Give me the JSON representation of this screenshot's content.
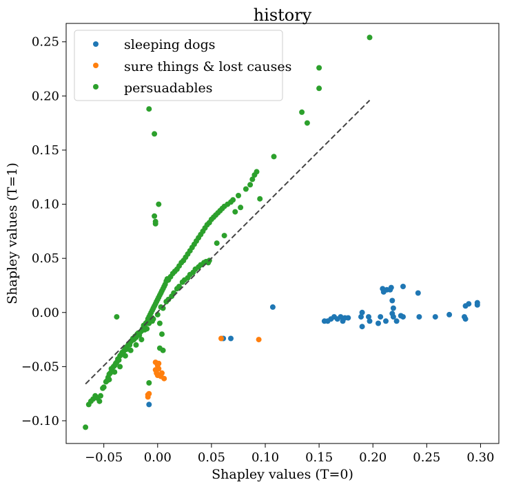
{
  "chart_data": {
    "type": "scatter",
    "title": "history",
    "xlabel": "Shapley values (T=0)",
    "ylabel": "Shapley values (T=1)",
    "xlim": [
      -0.085,
      0.317
    ],
    "ylim": [
      -0.121,
      0.267
    ],
    "xticks": [
      "−0.05",
      "0.00",
      "0.05",
      "0.10",
      "0.15",
      "0.20",
      "0.25",
      "0.30"
    ],
    "xtick_values": [
      -0.05,
      0.0,
      0.05,
      0.1,
      0.15,
      0.2,
      0.25,
      0.3
    ],
    "yticks": [
      "−0.10",
      "−0.05",
      "0.00",
      "0.05",
      "0.10",
      "0.15",
      "0.20",
      "0.25"
    ],
    "ytick_values": [
      -0.1,
      -0.05,
      0.0,
      0.05,
      0.1,
      0.15,
      0.2,
      0.25
    ],
    "grid": false,
    "legend_position": "top-left",
    "reference_line": {
      "style": "dashed",
      "color": "#444444",
      "x": [
        -0.067,
        0.197
      ],
      "y": [
        -0.066,
        0.196
      ]
    },
    "series": [
      {
        "name": "sleeping dogs",
        "color": "#1f77b4",
        "points": [
          [
            -0.008,
            -0.085
          ],
          [
            0.061,
            -0.024
          ],
          [
            0.068,
            -0.024
          ],
          [
            0.107,
            0.005
          ],
          [
            0.155,
            -0.008
          ],
          [
            0.158,
            -0.008
          ],
          [
            0.161,
            -0.006
          ],
          [
            0.164,
            -0.004
          ],
          [
            0.167,
            -0.006
          ],
          [
            0.17,
            -0.004
          ],
          [
            0.172,
            -0.008
          ],
          [
            0.174,
            -0.005
          ],
          [
            0.177,
            -0.005
          ],
          [
            0.189,
            -0.004
          ],
          [
            0.19,
            -0.013
          ],
          [
            0.19,
            0.0
          ],
          [
            0.196,
            -0.004
          ],
          [
            0.197,
            -0.008
          ],
          [
            0.205,
            -0.01
          ],
          [
            0.207,
            -0.004
          ],
          [
            0.209,
            0.022
          ],
          [
            0.21,
            0.019
          ],
          [
            0.212,
            -0.008
          ],
          [
            0.213,
            0.021
          ],
          [
            0.216,
            0.021
          ],
          [
            0.217,
            0.023
          ],
          [
            0.218,
            0.011
          ],
          [
            0.218,
            -0.001
          ],
          [
            0.219,
            -0.004
          ],
          [
            0.219,
            0.004
          ],
          [
            0.222,
            -0.008
          ],
          [
            0.226,
            -0.003
          ],
          [
            0.228,
            -0.004
          ],
          [
            0.228,
            0.024
          ],
          [
            0.242,
            0.018
          ],
          [
            0.243,
            -0.004
          ],
          [
            0.258,
            -0.004
          ],
          [
            0.271,
            -0.002
          ],
          [
            0.285,
            -0.004
          ],
          [
            0.286,
            -0.006
          ],
          [
            0.286,
            0.006
          ],
          [
            0.289,
            0.008
          ],
          [
            0.297,
            0.007
          ],
          [
            0.297,
            0.009
          ]
        ]
      },
      {
        "name": "sure things & lost causes",
        "color": "#ff7f0e",
        "points": [
          [
            -0.009,
            -0.076
          ],
          [
            -0.009,
            -0.078
          ],
          [
            -0.008,
            -0.075
          ],
          [
            -0.002,
            -0.046
          ],
          [
            -0.002,
            -0.053
          ],
          [
            -0.001,
            -0.056
          ],
          [
            0.0,
            -0.058
          ],
          [
            0.0,
            -0.049
          ],
          [
            0.001,
            -0.052
          ],
          [
            0.002,
            -0.058
          ],
          [
            0.003,
            -0.059
          ],
          [
            0.004,
            -0.056
          ],
          [
            0.006,
            -0.061
          ],
          [
            0.001,
            -0.047
          ],
          [
            0.059,
            -0.024
          ],
          [
            0.094,
            -0.025
          ]
        ]
      },
      {
        "name": "persuadables",
        "color": "#2ca02c",
        "points": [
          [
            -0.067,
            -0.106
          ],
          [
            -0.064,
            -0.085
          ],
          [
            -0.062,
            -0.082
          ],
          [
            -0.06,
            -0.08
          ],
          [
            -0.058,
            -0.077
          ],
          [
            -0.056,
            -0.079
          ],
          [
            -0.054,
            -0.082
          ],
          [
            -0.053,
            -0.077
          ],
          [
            -0.051,
            -0.07
          ],
          [
            -0.05,
            -0.069
          ],
          [
            -0.048,
            -0.064
          ],
          [
            -0.047,
            -0.063
          ],
          [
            -0.046,
            -0.06
          ],
          [
            -0.045,
            -0.057
          ],
          [
            -0.044,
            -0.056
          ],
          [
            -0.043,
            -0.052
          ],
          [
            -0.042,
            -0.054
          ],
          [
            -0.041,
            -0.05
          ],
          [
            -0.04,
            -0.049
          ],
          [
            -0.039,
            -0.047
          ],
          [
            -0.038,
            -0.046
          ],
          [
            -0.037,
            -0.043
          ],
          [
            -0.036,
            -0.044
          ],
          [
            -0.035,
            -0.04
          ],
          [
            -0.034,
            -0.039
          ],
          [
            -0.033,
            -0.037
          ],
          [
            -0.032,
            -0.038
          ],
          [
            -0.031,
            -0.035
          ],
          [
            -0.03,
            -0.033
          ],
          [
            -0.029,
            -0.034
          ],
          [
            -0.028,
            -0.031
          ],
          [
            -0.027,
            -0.029
          ],
          [
            -0.026,
            -0.03
          ],
          [
            -0.025,
            -0.027
          ],
          [
            -0.024,
            -0.026
          ],
          [
            -0.023,
            -0.024
          ],
          [
            -0.022,
            -0.025
          ],
          [
            -0.021,
            -0.022
          ],
          [
            -0.02,
            -0.023
          ],
          [
            -0.019,
            -0.02
          ],
          [
            -0.018,
            -0.019
          ],
          [
            -0.017,
            -0.021
          ],
          [
            -0.016,
            -0.018
          ],
          [
            -0.015,
            -0.017
          ],
          [
            -0.014,
            -0.015
          ],
          [
            -0.013,
            -0.012
          ],
          [
            -0.012,
            -0.013
          ],
          [
            -0.011,
            -0.01
          ],
          [
            -0.01,
            -0.009
          ],
          [
            -0.009,
            -0.006
          ],
          [
            -0.008,
            -0.004
          ],
          [
            -0.007,
            -0.002
          ],
          [
            -0.006,
            0.0
          ],
          [
            -0.005,
            0.002
          ],
          [
            -0.004,
            0.004
          ],
          [
            -0.003,
            0.006
          ],
          [
            -0.002,
            0.008
          ],
          [
            -0.001,
            0.01
          ],
          [
            0.0,
            0.012
          ],
          [
            0.001,
            0.014
          ],
          [
            0.002,
            0.016
          ],
          [
            0.003,
            0.018
          ],
          [
            0.004,
            0.02
          ],
          [
            0.005,
            0.022
          ],
          [
            0.006,
            0.024
          ],
          [
            0.007,
            0.026
          ],
          [
            0.008,
            0.029
          ],
          [
            0.009,
            0.031
          ],
          [
            0.01,
            0.03
          ],
          [
            0.012,
            0.033
          ],
          [
            0.014,
            0.036
          ],
          [
            0.016,
            0.038
          ],
          [
            0.018,
            0.04
          ],
          [
            0.02,
            0.043
          ],
          [
            0.022,
            0.046
          ],
          [
            0.024,
            0.048
          ],
          [
            0.026,
            0.051
          ],
          [
            0.028,
            0.054
          ],
          [
            0.03,
            0.057
          ],
          [
            0.032,
            0.06
          ],
          [
            0.034,
            0.063
          ],
          [
            0.036,
            0.066
          ],
          [
            0.038,
            0.069
          ],
          [
            0.04,
            0.072
          ],
          [
            0.042,
            0.075
          ],
          [
            0.044,
            0.078
          ],
          [
            0.046,
            0.081
          ],
          [
            0.048,
            0.083
          ],
          [
            0.05,
            0.086
          ],
          [
            0.052,
            0.088
          ],
          [
            0.054,
            0.09
          ],
          [
            0.056,
            0.092
          ],
          [
            0.058,
            0.094
          ],
          [
            0.06,
            0.096
          ],
          [
            0.062,
            0.098
          ],
          [
            0.065,
            0.1
          ],
          [
            0.068,
            0.102
          ],
          [
            0.07,
            0.104
          ],
          [
            0.075,
            0.108
          ],
          [
            0.082,
            0.114
          ],
          [
            0.086,
            0.118
          ],
          [
            0.088,
            0.123
          ],
          [
            0.09,
            0.127
          ],
          [
            0.092,
            0.13
          ],
          [
            -0.02,
            -0.03
          ],
          [
            -0.015,
            -0.025
          ],
          [
            -0.01,
            -0.015
          ],
          [
            -0.005,
            -0.008
          ],
          [
            0.0,
            -0.002
          ],
          [
            0.005,
            0.004
          ],
          [
            0.01,
            0.012
          ],
          [
            0.015,
            0.018
          ],
          [
            0.02,
            0.024
          ],
          [
            0.025,
            0.03
          ],
          [
            0.03,
            0.035
          ],
          [
            0.035,
            0.04
          ],
          [
            0.04,
            0.044
          ],
          [
            0.045,
            0.047
          ],
          [
            0.048,
            0.048
          ],
          [
            -0.025,
            -0.035
          ],
          [
            -0.03,
            -0.04
          ],
          [
            -0.035,
            -0.05
          ],
          [
            -0.04,
            -0.055
          ],
          [
            -0.045,
            -0.062
          ],
          [
            0.003,
            0.005
          ],
          [
            0.008,
            0.01
          ],
          [
            0.013,
            0.015
          ],
          [
            0.018,
            0.022
          ],
          [
            0.023,
            0.028
          ],
          [
            0.028,
            0.032
          ],
          [
            0.033,
            0.037
          ],
          [
            0.038,
            0.042
          ],
          [
            0.043,
            0.046
          ],
          [
            0.047,
            0.046
          ],
          [
            -0.004,
            -0.006
          ],
          [
            -0.008,
            -0.01
          ],
          [
            -0.012,
            -0.016
          ],
          [
            0.002,
            -0.01
          ],
          [
            0.004,
            -0.02
          ],
          [
            0.002,
            -0.033
          ],
          [
            0.005,
            -0.035
          ],
          [
            -0.008,
            -0.065
          ],
          [
            -0.038,
            -0.004
          ],
          [
            -0.008,
            0.188
          ],
          [
            -0.003,
            0.165
          ],
          [
            0.001,
            0.1
          ],
          [
            -0.003,
            0.089
          ],
          [
            -0.002,
            0.084
          ],
          [
            -0.002,
            0.082
          ],
          [
            0.055,
            0.064
          ],
          [
            0.062,
            0.071
          ],
          [
            0.072,
            0.093
          ],
          [
            0.077,
            0.097
          ],
          [
            0.095,
            0.105
          ],
          [
            0.108,
            0.144
          ],
          [
            0.134,
            0.185
          ],
          [
            0.139,
            0.175
          ],
          [
            0.15,
            0.226
          ],
          [
            0.15,
            0.207
          ],
          [
            0.197,
            0.254
          ]
        ]
      }
    ]
  }
}
